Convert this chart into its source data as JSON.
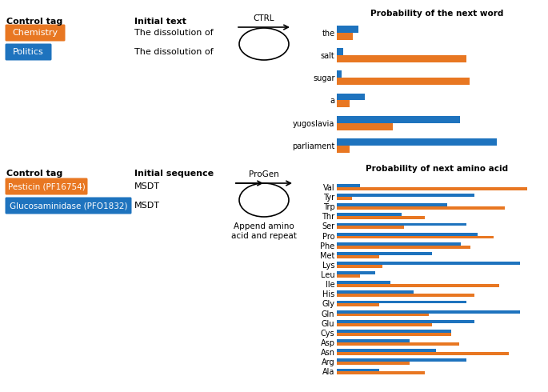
{
  "title1": "Probability of the next word",
  "title2": "Probability of next amino acid",
  "word_labels": [
    "the",
    "salt",
    "sugar",
    "a",
    "yugoslavia",
    "parliament"
  ],
  "word_orange": [
    0.05,
    0.42,
    0.43,
    0.04,
    0.18,
    0.04
  ],
  "word_blue": [
    0.07,
    0.02,
    0.015,
    0.09,
    0.4,
    0.52
  ],
  "aa_labels": [
    "Val",
    "Tyr",
    "Trp",
    "Thr",
    "Ser",
    "Pro",
    "Phe",
    "Met",
    "Lys",
    "Leu",
    "Ile",
    "His",
    "Gly",
    "Gln",
    "Glu",
    "Cys",
    "Asp",
    "Asn",
    "Arg",
    "Ala"
  ],
  "aa_orange": [
    1.0,
    0.08,
    0.88,
    0.46,
    0.35,
    0.82,
    0.7,
    0.22,
    0.24,
    0.12,
    0.85,
    0.72,
    0.22,
    0.48,
    0.5,
    0.6,
    0.64,
    0.9,
    0.38,
    0.46
  ],
  "aa_blue": [
    0.12,
    0.72,
    0.58,
    0.34,
    0.68,
    0.74,
    0.65,
    0.5,
    0.96,
    0.2,
    0.28,
    0.4,
    0.68,
    0.96,
    0.72,
    0.6,
    0.38,
    0.52,
    0.68,
    0.22
  ],
  "orange": "#E87722",
  "blue": "#1E73BE",
  "bg": "#ffffff",
  "pesticin_tag_color": "#E87722",
  "glucos_tag_color": "#1E73BE"
}
